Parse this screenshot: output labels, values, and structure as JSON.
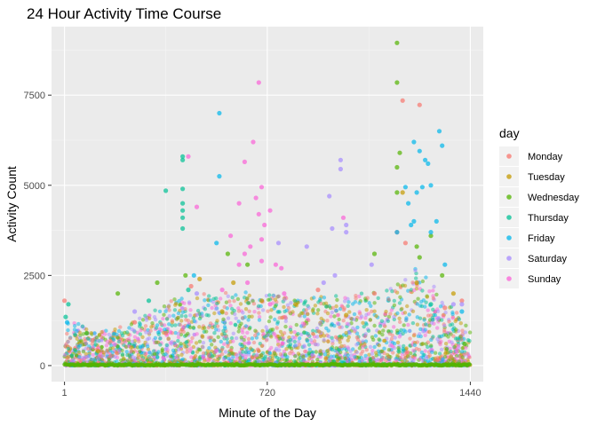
{
  "chart_data": {
    "type": "scatter",
    "title": "24 Hour Activity Time Course",
    "xlabel": "Minute of the Day",
    "ylabel": "Activity Count",
    "xlim": [
      -45,
      1486
    ],
    "ylim": [
      -445,
      9400
    ],
    "x_ticks": [
      1,
      720,
      1440
    ],
    "y_ticks": [
      0,
      2500,
      5000,
      7500
    ],
    "grid": true,
    "background": "#ebebeb",
    "legend": {
      "title": "day",
      "position": "right",
      "entries": [
        "Monday",
        "Tuesday",
        "Wednesday",
        "Thursday",
        "Friday",
        "Saturday",
        "Sunday"
      ]
    },
    "series": [
      {
        "name": "Monday",
        "color": "#F8766D",
        "points": [
          [
            1,
            1800
          ],
          [
            1410,
            1800
          ],
          [
            1200,
            7350
          ],
          [
            1260,
            7230
          ],
          [
            1180,
            3700
          ],
          [
            1210,
            3400
          ],
          [
            450,
            2200
          ],
          [
            360,
            900
          ],
          [
            250,
            1200
          ],
          [
            100,
            700
          ],
          [
            900,
            2100
          ],
          [
            1100,
            2000
          ],
          [
            1350,
            1600
          ]
        ]
      },
      {
        "name": "Tuesday",
        "color": "#C49A00",
        "points": [
          [
            1200,
            4800
          ],
          [
            1250,
            2300
          ],
          [
            700,
            1800
          ],
          [
            560,
            1500
          ],
          [
            480,
            2400
          ],
          [
            820,
            1700
          ],
          [
            1000,
            1400
          ],
          [
            120,
            400
          ],
          [
            1380,
            2000
          ],
          [
            600,
            2300
          ]
        ]
      },
      {
        "name": "Wednesday",
        "color": "#53B400",
        "points": [
          [
            1180,
            8950
          ],
          [
            1180,
            7850
          ],
          [
            1190,
            5900
          ],
          [
            1180,
            5500
          ],
          [
            1180,
            4800
          ],
          [
            1250,
            3300
          ],
          [
            1260,
            3000
          ],
          [
            1300,
            3600
          ],
          [
            1100,
            3100
          ],
          [
            580,
            3100
          ],
          [
            650,
            2800
          ],
          [
            330,
            2300
          ],
          [
            190,
            2000
          ],
          [
            430,
            2500
          ],
          [
            1340,
            2500
          ],
          [
            80,
            900
          ],
          [
            1420,
            600
          ]
        ]
      },
      {
        "name": "Thursday",
        "color": "#00C094",
        "points": [
          [
            420,
            5800
          ],
          [
            420,
            5700
          ],
          [
            420,
            4900
          ],
          [
            420,
            4500
          ],
          [
            420,
            4300
          ],
          [
            420,
            4100
          ],
          [
            420,
            3800
          ],
          [
            360,
            4850
          ],
          [
            15,
            1700
          ],
          [
            5,
            1350
          ],
          [
            440,
            2100
          ],
          [
            300,
            1800
          ],
          [
            1300,
            1700
          ]
        ]
      },
      {
        "name": "Friday",
        "color": "#00B6EB",
        "points": [
          [
            550,
            7000
          ],
          [
            550,
            5250
          ],
          [
            540,
            3400
          ],
          [
            1330,
            6500
          ],
          [
            1340,
            6100
          ],
          [
            1240,
            6200
          ],
          [
            1260,
            5950
          ],
          [
            1280,
            5700
          ],
          [
            1290,
            5600
          ],
          [
            1300,
            5000
          ],
          [
            1270,
            4950
          ],
          [
            1210,
            4950
          ],
          [
            1250,
            4800
          ],
          [
            1220,
            4500
          ],
          [
            1240,
            4000
          ],
          [
            1230,
            3900
          ],
          [
            1180,
            3700
          ],
          [
            1320,
            4000
          ],
          [
            1300,
            3700
          ],
          [
            460,
            2500
          ],
          [
            1350,
            2800
          ],
          [
            10,
            1200
          ],
          [
            1410,
            1500
          ]
        ]
      },
      {
        "name": "Saturday",
        "color": "#A58AFF",
        "points": [
          [
            980,
            5700
          ],
          [
            980,
            5450
          ],
          [
            940,
            4700
          ],
          [
            1000,
            3900
          ],
          [
            950,
            3800
          ],
          [
            1000,
            3700
          ],
          [
            860,
            3300
          ],
          [
            760,
            3400
          ],
          [
            960,
            2500
          ],
          [
            920,
            2300
          ],
          [
            1090,
            2800
          ],
          [
            1410,
            1700
          ],
          [
            1380,
            1700
          ],
          [
            470,
            2000
          ],
          [
            250,
            1500
          ]
        ]
      },
      {
        "name": "Sunday",
        "color": "#FB61D7",
        "points": [
          [
            690,
            7850
          ],
          [
            670,
            6200
          ],
          [
            640,
            5650
          ],
          [
            700,
            4950
          ],
          [
            680,
            4650
          ],
          [
            730,
            4300
          ],
          [
            620,
            4500
          ],
          [
            690,
            4200
          ],
          [
            710,
            3900
          ],
          [
            590,
            3600
          ],
          [
            700,
            3500
          ],
          [
            660,
            3300
          ],
          [
            640,
            3100
          ],
          [
            700,
            2900
          ],
          [
            620,
            2800
          ],
          [
            750,
            2800
          ],
          [
            770,
            2700
          ],
          [
            440,
            5800
          ],
          [
            470,
            4400
          ],
          [
            990,
            4100
          ],
          [
            650,
            2300
          ],
          [
            560,
            2100
          ],
          [
            780,
            2000
          ],
          [
            730,
            1700
          ]
        ]
      }
    ],
    "dense_band": {
      "note": "thousands of overlapping points per series",
      "envelope": [
        [
          1,
          1300
        ],
        [
          100,
          900
        ],
        [
          220,
          1050
        ],
        [
          300,
          1400
        ],
        [
          400,
          1800
        ],
        [
          500,
          1900
        ],
        [
          650,
          1950
        ],
        [
          800,
          1800
        ],
        [
          1000,
          1850
        ],
        [
          1150,
          2000
        ],
        [
          1250,
          2600
        ],
        [
          1350,
          1800
        ],
        [
          1440,
          1000
        ]
      ]
    }
  }
}
